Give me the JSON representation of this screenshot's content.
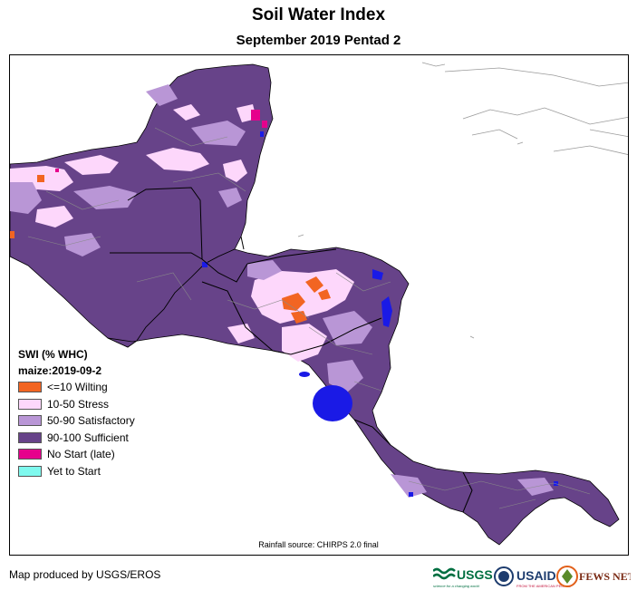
{
  "header": {
    "title": "Soil Water Index",
    "subtitle": "September 2019 Pentad 2"
  },
  "legend": {
    "title_line1": "SWI (% WHC)",
    "title_line2": "maize:2019-09-2",
    "items": [
      {
        "label": "<=10 Wilting",
        "color": "#f26522"
      },
      {
        "label": "10-50 Stress",
        "color": "#fdd7fb"
      },
      {
        "label": "50-90 Satisfactory",
        "color": "#b996d6"
      },
      {
        "label": "90-100 Sufficient",
        "color": "#674389"
      },
      {
        "label": "No Start (late)",
        "color": "#e6008c"
      },
      {
        "label": "Yet to Start",
        "color": "#7ff9ee"
      }
    ]
  },
  "source_note": "Rainfall source: CHIRPS 2.0 final",
  "footer": {
    "producer": "Map produced by USGS/EROS",
    "logos": {
      "usgs": "USGS",
      "usgs_tagline": "science for a changing world",
      "usaid": "USAID",
      "usaid_tagline": "FROM THE AMERICAN PEOPLE",
      "fewsnet": "FEWS NET"
    }
  },
  "colors": {
    "sufficient": "#674389",
    "satisfactory": "#b996d6",
    "stress": "#fdd7fb",
    "wilting": "#f26522",
    "no_start": "#e6008c",
    "water": "#1a1ae6",
    "border": "#000000",
    "admin": "#8a8a8a",
    "coast_grey": "#9a9a9a"
  }
}
